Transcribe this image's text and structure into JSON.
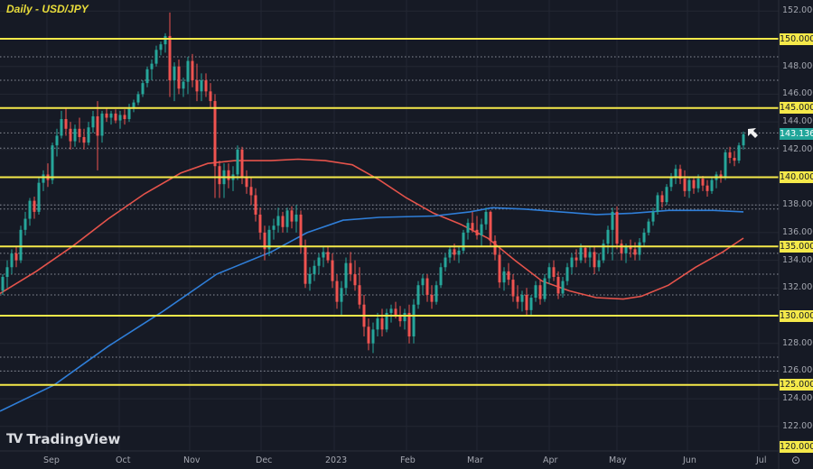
{
  "header": {
    "title": "Daily - USD/JPY"
  },
  "branding": {
    "logo_mark": "TV",
    "logo_text": "TradingView"
  },
  "colors": {
    "background": "#161a25",
    "grid": "#232733",
    "bull": "#26a69a",
    "bear": "#ef5350",
    "level_line": "#f5e94a",
    "ma_red": "#e5534b",
    "ma_blue": "#2f7ed8",
    "dotted": "#8a8e99",
    "current_price_bg": "#21a69a"
  },
  "price_axis": {
    "ticks": [
      "152.000",
      "148.000",
      "146.000",
      "144.000",
      "142.000",
      "138.000",
      "136.000",
      "134.000",
      "132.000",
      "128.000",
      "126.000",
      "124.000",
      "122.000"
    ],
    "level_tags": [
      "150.000",
      "145.000",
      "140.000",
      "135.000",
      "130.000",
      "125.000",
      "120.000"
    ],
    "current_price": "143.136"
  },
  "time_axis": {
    "labels": [
      "Sep",
      "Oct",
      "Nov",
      "Dec",
      "2023",
      "Feb",
      "Mar",
      "Apr",
      "May",
      "Jun",
      "Jul"
    ]
  },
  "chart_data": {
    "type": "candlestick",
    "title": "Daily - USD/JPY",
    "xlabel": "",
    "ylabel": "",
    "ylim": [
      120,
      152.5
    ],
    "x_range": [
      "2022-08",
      "2023-07"
    ],
    "horizontal_levels": [
      150,
      145,
      140,
      135,
      130,
      125,
      120
    ],
    "dotted_levels": [
      148.7,
      147.0,
      143.2,
      142.1,
      138.0,
      137.7,
      134.5,
      133.0,
      131.5,
      127.0,
      126.0
    ],
    "current_price": 143.136,
    "moving_averages": [
      {
        "name": "MA (red, ~100-day)",
        "color": "#e5534b",
        "points": [
          [
            0,
            131.6
          ],
          [
            40,
            133.2
          ],
          [
            80,
            135.0
          ],
          [
            120,
            137.0
          ],
          [
            160,
            138.8
          ],
          [
            200,
            140.3
          ],
          [
            230,
            141.0
          ],
          [
            260,
            141.2
          ],
          [
            300,
            141.2
          ],
          [
            330,
            141.3
          ],
          [
            360,
            141.2
          ],
          [
            390,
            140.9
          ],
          [
            420,
            139.8
          ],
          [
            450,
            138.5
          ],
          [
            480,
            137.4
          ],
          [
            510,
            136.6
          ],
          [
            540,
            135.6
          ],
          [
            570,
            134.0
          ],
          [
            600,
            132.5
          ],
          [
            630,
            131.8
          ],
          [
            660,
            131.3
          ],
          [
            690,
            131.2
          ],
          [
            710,
            131.4
          ],
          [
            740,
            132.2
          ],
          [
            770,
            133.5
          ],
          [
            800,
            134.6
          ],
          [
            823,
            135.6
          ]
        ]
      },
      {
        "name": "MA (blue, ~200-day)",
        "color": "#2f7ed8",
        "points": [
          [
            0,
            123.1
          ],
          [
            60,
            125.0
          ],
          [
            120,
            127.8
          ],
          [
            180,
            130.3
          ],
          [
            240,
            133.0
          ],
          [
            300,
            134.6
          ],
          [
            340,
            136.0
          ],
          [
            380,
            136.9
          ],
          [
            420,
            137.1
          ],
          [
            480,
            137.2
          ],
          [
            520,
            137.5
          ],
          [
            545,
            137.8
          ],
          [
            580,
            137.7
          ],
          [
            620,
            137.5
          ],
          [
            660,
            137.3
          ],
          [
            700,
            137.4
          ],
          [
            740,
            137.6
          ],
          [
            790,
            137.6
          ],
          [
            823,
            137.5
          ]
        ]
      }
    ],
    "candles_note": "Approximate daily OHLC path reconstructed from the screenshot; x = pixel column",
    "candles": [
      [
        3,
        131.8,
        133.0,
        131.5,
        132.8
      ],
      [
        8,
        132.8,
        134.0,
        132.0,
        133.5
      ],
      [
        13,
        133.5,
        134.8,
        133.0,
        134.5
      ],
      [
        18,
        134.5,
        135.0,
        133.5,
        134.0
      ],
      [
        23,
        134.0,
        136.5,
        133.8,
        136.2
      ],
      [
        28,
        136.2,
        137.5,
        135.8,
        137.0
      ],
      [
        33,
        137.0,
        138.5,
        136.5,
        138.3
      ],
      [
        38,
        138.3,
        138.6,
        137.0,
        137.5
      ],
      [
        43,
        137.5,
        140.0,
        137.3,
        139.6
      ],
      [
        48,
        139.6,
        140.5,
        139.0,
        140.2
      ],
      [
        53,
        140.2,
        141.0,
        139.3,
        139.8
      ],
      [
        58,
        139.8,
        142.5,
        139.5,
        142.3
      ],
      [
        63,
        142.3,
        143.5,
        141.5,
        143.0
      ],
      [
        68,
        143.0,
        144.8,
        142.8,
        144.2
      ],
      [
        73,
        144.2,
        145.0,
        143.0,
        143.5
      ],
      [
        78,
        143.5,
        144.0,
        142.0,
        142.6
      ],
      [
        83,
        142.6,
        143.8,
        142.2,
        143.5
      ],
      [
        88,
        143.5,
        144.3,
        142.5,
        142.9
      ],
      [
        93,
        142.9,
        143.5,
        142.0,
        142.5
      ],
      [
        98,
        142.5,
        144.0,
        142.3,
        143.6
      ],
      [
        103,
        143.6,
        144.8,
        143.2,
        144.4
      ],
      [
        108,
        144.4,
        145.5,
        140.5,
        143.0
      ],
      [
        113,
        143.0,
        144.8,
        142.5,
        144.6
      ],
      [
        118,
        144.6,
        145.0,
        144.0,
        144.3
      ],
      [
        123,
        144.3,
        144.8,
        143.8,
        144.6
      ],
      [
        128,
        144.6,
        144.9,
        143.9,
        144.1
      ],
      [
        133,
        144.1,
        144.8,
        143.5,
        144.5
      ],
      [
        138,
        144.5,
        144.9,
        143.8,
        144.2
      ],
      [
        143,
        144.2,
        145.3,
        144.0,
        145.0
      ],
      [
        148,
        145.0,
        145.6,
        144.7,
        145.4
      ],
      [
        153,
        145.4,
        146.2,
        145.2,
        146.0
      ],
      [
        158,
        146.0,
        147.0,
        145.8,
        146.8
      ],
      [
        163,
        146.8,
        148.0,
        146.5,
        147.8
      ],
      [
        168,
        147.8,
        148.5,
        147.0,
        148.2
      ],
      [
        173,
        148.2,
        149.5,
        148.0,
        149.2
      ],
      [
        178,
        149.2,
        149.8,
        148.8,
        149.6
      ],
      [
        183,
        149.6,
        150.4,
        149.0,
        150.2
      ],
      [
        188,
        150.2,
        151.9,
        145.8,
        147.0
      ],
      [
        193,
        147.0,
        148.3,
        145.5,
        148.0
      ],
      [
        198,
        148.0,
        148.5,
        146.0,
        146.4
      ],
      [
        203,
        146.4,
        147.2,
        145.8,
        146.9
      ],
      [
        208,
        146.9,
        148.7,
        146.0,
        148.4
      ],
      [
        213,
        148.4,
        148.9,
        146.5,
        147.0
      ],
      [
        218,
        147.0,
        148.2,
        145.5,
        146.2
      ],
      [
        223,
        146.2,
        147.5,
        145.5,
        147.0
      ],
      [
        228,
        147.0,
        147.5,
        145.8,
        146.2
      ],
      [
        233,
        146.2,
        146.8,
        145.0,
        145.5
      ],
      [
        238,
        145.5,
        146.0,
        138.5,
        140.8
      ],
      [
        243,
        140.8,
        141.2,
        138.5,
        139.5
      ],
      [
        248,
        139.5,
        141.0,
        138.5,
        140.5
      ],
      [
        253,
        140.5,
        141.0,
        139.2,
        139.8
      ],
      [
        258,
        139.8,
        140.8,
        139.0,
        140.2
      ],
      [
        263,
        140.2,
        142.3,
        139.8,
        142.0
      ],
      [
        268,
        142.0,
        142.2,
        139.5,
        140.0
      ],
      [
        273,
        140.0,
        140.5,
        138.8,
        139.3
      ],
      [
        278,
        139.3,
        140.0,
        138.0,
        138.7
      ],
      [
        283,
        138.7,
        139.2,
        136.8,
        137.3
      ],
      [
        288,
        137.3,
        137.8,
        135.5,
        136.0
      ],
      [
        293,
        136.0,
        136.5,
        134.0,
        134.8
      ],
      [
        298,
        134.8,
        136.5,
        134.3,
        136.2
      ],
      [
        303,
        136.2,
        137.0,
        135.5,
        136.5
      ],
      [
        308,
        136.5,
        137.8,
        136.0,
        137.2
      ],
      [
        313,
        137.2,
        137.5,
        136.0,
        136.4
      ],
      [
        318,
        136.4,
        137.8,
        136.0,
        137.6
      ],
      [
        323,
        137.6,
        137.9,
        136.3,
        136.8
      ],
      [
        328,
        136.8,
        138.0,
        136.0,
        137.3
      ],
      [
        333,
        137.3,
        137.6,
        134.5,
        135.0
      ],
      [
        338,
        135.0,
        135.5,
        132.0,
        132.3
      ],
      [
        343,
        132.3,
        133.5,
        131.8,
        133.0
      ],
      [
        348,
        133.0,
        134.0,
        132.5,
        133.6
      ],
      [
        353,
        133.6,
        134.5,
        133.0,
        134.2
      ],
      [
        358,
        134.2,
        135.0,
        133.5,
        134.6
      ],
      [
        363,
        134.6,
        135.0,
        133.8,
        134.0
      ],
      [
        368,
        134.0,
        134.5,
        132.0,
        132.5
      ],
      [
        373,
        132.5,
        133.0,
        130.5,
        131.0
      ],
      [
        378,
        131.0,
        132.5,
        130.0,
        132.0
      ],
      [
        383,
        132.0,
        134.2,
        131.5,
        133.8
      ],
      [
        388,
        133.8,
        134.6,
        132.5,
        133.0
      ],
      [
        393,
        133.0,
        134.0,
        131.8,
        132.2
      ],
      [
        398,
        132.2,
        133.5,
        130.5,
        130.8
      ],
      [
        403,
        130.8,
        131.5,
        128.5,
        129.2
      ],
      [
        408,
        129.2,
        129.8,
        127.5,
        128.0
      ],
      [
        413,
        128.0,
        129.5,
        127.3,
        129.0
      ],
      [
        418,
        129.0,
        130.2,
        128.5,
        129.8
      ],
      [
        423,
        129.8,
        130.5,
        128.5,
        129.0
      ],
      [
        428,
        129.0,
        130.5,
        128.8,
        130.2
      ],
      [
        433,
        130.2,
        130.8,
        129.5,
        130.5
      ],
      [
        438,
        130.5,
        131.0,
        129.8,
        130.0
      ],
      [
        443,
        130.0,
        130.7,
        129.2,
        129.6
      ],
      [
        448,
        129.6,
        130.5,
        129.0,
        130.2
      ],
      [
        453,
        130.2,
        130.8,
        128.0,
        128.5
      ],
      [
        458,
        128.5,
        131.2,
        128.0,
        130.8
      ],
      [
        463,
        130.8,
        132.5,
        130.5,
        132.2
      ],
      [
        468,
        132.2,
        133.0,
        131.5,
        132.7
      ],
      [
        473,
        132.7,
        133.0,
        131.0,
        131.5
      ],
      [
        478,
        131.5,
        132.2,
        130.5,
        131.0
      ],
      [
        483,
        131.0,
        132.5,
        130.8,
        132.2
      ],
      [
        488,
        132.2,
        133.8,
        132.0,
        133.5
      ],
      [
        493,
        133.5,
        134.5,
        133.2,
        134.2
      ],
      [
        498,
        134.2,
        135.0,
        133.8,
        134.8
      ],
      [
        503,
        134.8,
        135.2,
        134.0,
        134.4
      ],
      [
        508,
        134.4,
        135.0,
        133.8,
        134.7
      ],
      [
        513,
        134.7,
        136.2,
        134.5,
        136.0
      ],
      [
        518,
        136.0,
        137.0,
        135.5,
        136.7
      ],
      [
        523,
        136.7,
        137.5,
        136.0,
        136.2
      ],
      [
        528,
        136.2,
        137.2,
        135.5,
        135.8
      ],
      [
        533,
        135.8,
        137.0,
        135.0,
        136.6
      ],
      [
        538,
        136.6,
        137.8,
        136.2,
        137.5
      ],
      [
        543,
        137.5,
        137.6,
        135.0,
        135.4
      ],
      [
        548,
        135.4,
        135.8,
        134.0,
        134.4
      ],
      [
        553,
        134.4,
        135.0,
        132.0,
        132.4
      ],
      [
        558,
        132.4,
        133.5,
        131.8,
        133.2
      ],
      [
        563,
        133.2,
        133.8,
        132.2,
        132.6
      ],
      [
        568,
        132.6,
        133.0,
        131.0,
        131.4
      ],
      [
        573,
        131.4,
        132.2,
        130.5,
        131.0
      ],
      [
        578,
        131.0,
        131.8,
        130.3,
        131.5
      ],
      [
        583,
        131.5,
        132.0,
        130.0,
        130.4
      ],
      [
        588,
        130.4,
        131.5,
        130.0,
        131.3
      ],
      [
        593,
        131.3,
        132.5,
        131.0,
        132.2
      ],
      [
        598,
        132.2,
        132.6,
        130.8,
        131.2
      ],
      [
        603,
        131.2,
        133.0,
        131.0,
        132.7
      ],
      [
        608,
        132.7,
        133.8,
        132.3,
        133.5
      ],
      [
        613,
        133.5,
        134.0,
        132.5,
        132.8
      ],
      [
        618,
        132.8,
        133.2,
        131.2,
        131.6
      ],
      [
        623,
        131.6,
        132.8,
        131.3,
        132.5
      ],
      [
        628,
        132.5,
        133.8,
        132.2,
        133.5
      ],
      [
        633,
        133.5,
        134.5,
        133.0,
        134.2
      ],
      [
        638,
        134.2,
        134.8,
        133.5,
        134.0
      ],
      [
        643,
        134.0,
        135.2,
        133.8,
        134.9
      ],
      [
        648,
        134.9,
        135.0,
        133.8,
        134.2
      ],
      [
        653,
        134.2,
        135.0,
        133.5,
        134.6
      ],
      [
        658,
        134.6,
        135.0,
        133.0,
        133.5
      ],
      [
        663,
        133.5,
        134.5,
        133.2,
        134.0
      ],
      [
        668,
        134.0,
        135.5,
        133.8,
        135.2
      ],
      [
        673,
        135.2,
        136.5,
        134.5,
        136.2
      ],
      [
        678,
        136.2,
        137.8,
        134.0,
        137.5
      ],
      [
        683,
        137.5,
        137.9,
        134.8,
        135.2
      ],
      [
        688,
        135.2,
        135.5,
        134.0,
        134.5
      ],
      [
        693,
        134.5,
        135.2,
        133.8,
        135.0
      ],
      [
        698,
        135.0,
        135.5,
        134.2,
        134.8
      ],
      [
        703,
        134.8,
        135.3,
        134.0,
        134.4
      ],
      [
        708,
        134.4,
        135.6,
        134.0,
        135.3
      ],
      [
        713,
        135.3,
        136.3,
        135.0,
        136.0
      ],
      [
        718,
        136.0,
        137.0,
        135.8,
        136.8
      ],
      [
        723,
        136.8,
        137.8,
        136.5,
        137.5
      ],
      [
        728,
        137.5,
        138.9,
        137.3,
        138.7
      ],
      [
        733,
        138.7,
        139.0,
        137.8,
        138.2
      ],
      [
        738,
        138.2,
        139.5,
        138.0,
        139.3
      ],
      [
        743,
        139.3,
        140.3,
        139.0,
        140.0
      ],
      [
        748,
        140.0,
        140.9,
        139.5,
        140.6
      ],
      [
        753,
        140.6,
        140.9,
        139.5,
        139.9
      ],
      [
        758,
        139.9,
        140.5,
        138.6,
        139.0
      ],
      [
        763,
        139.0,
        140.0,
        138.5,
        139.8
      ],
      [
        768,
        139.8,
        140.0,
        138.8,
        139.2
      ],
      [
        773,
        139.2,
        140.2,
        138.9,
        139.9
      ],
      [
        778,
        139.9,
        140.1,
        139.0,
        139.4
      ],
      [
        783,
        139.4,
        139.8,
        138.6,
        139.0
      ],
      [
        788,
        139.0,
        140.0,
        138.8,
        139.8
      ],
      [
        793,
        139.8,
        140.4,
        139.2,
        140.2
      ],
      [
        798,
        140.2,
        140.5,
        139.6,
        140.0
      ],
      [
        803,
        140.0,
        142.0,
        139.8,
        141.8
      ],
      [
        808,
        141.8,
        142.2,
        141.0,
        141.4
      ],
      [
        813,
        141.4,
        141.9,
        140.8,
        141.2
      ],
      [
        818,
        141.2,
        142.5,
        141.0,
        142.3
      ],
      [
        823,
        142.3,
        143.3,
        142.0,
        143.1
      ]
    ]
  }
}
